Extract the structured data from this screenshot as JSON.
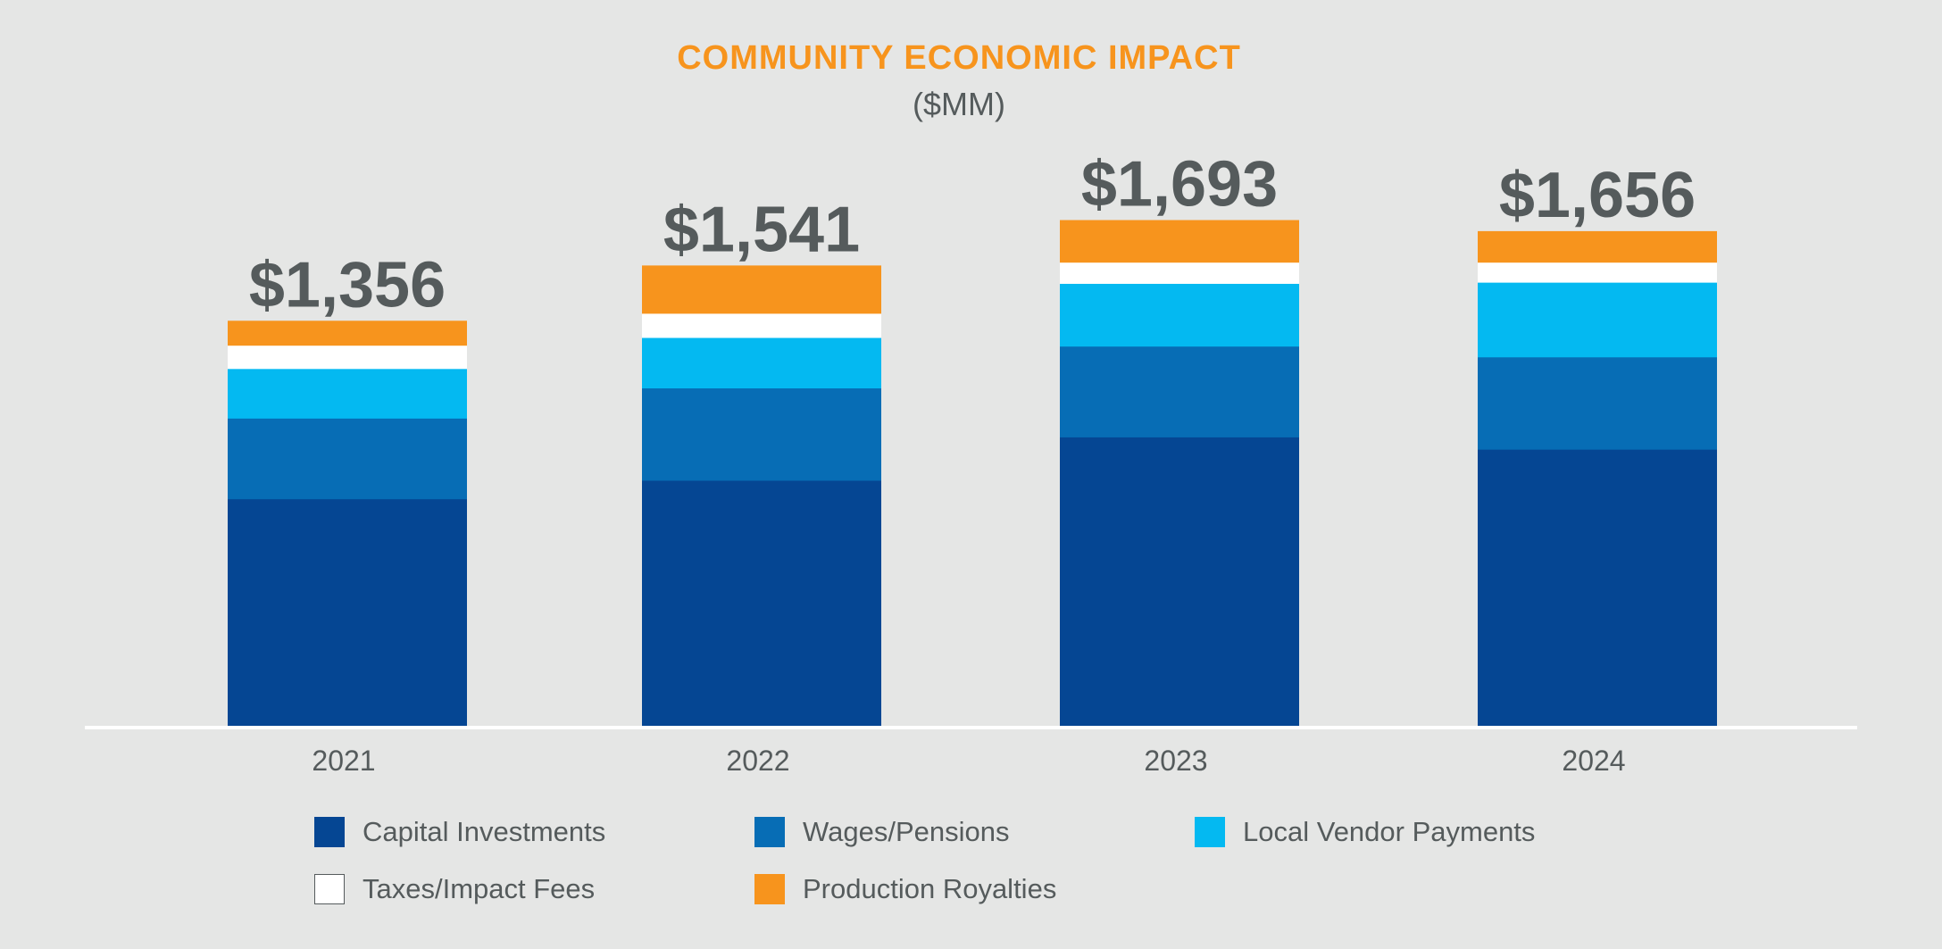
{
  "chart_data": {
    "type": "bar",
    "stacked": true,
    "title": "COMMUNITY ECONOMIC IMPACT",
    "subtitle": "($MM)",
    "categories": [
      "2021",
      "2022",
      "2023",
      "2024"
    ],
    "totals": [
      "$1,356",
      "$1,541",
      "$1,693",
      "$1,656"
    ],
    "total_values": [
      1356,
      1541,
      1693,
      1656
    ],
    "series": [
      {
        "name": "Capital Investments",
        "color": "#054693",
        "values": [
          760,
          822,
          967,
          926
        ]
      },
      {
        "name": "Wages/Pensions",
        "color": "#076db5",
        "values": [
          270,
          309,
          304,
          309
        ]
      },
      {
        "name": "Local Vendor Payments",
        "color": "#04b9f1",
        "values": [
          166,
          169,
          210,
          250
        ]
      },
      {
        "name": "Taxes/Impact Fees",
        "color": "#ffffff",
        "values": [
          78,
          81,
          71,
          67
        ]
      },
      {
        "name": "Production Royalties",
        "color": "#f7941d",
        "values": [
          82,
          160,
          141,
          104
        ]
      }
    ],
    "xlabel": "",
    "ylabel": "",
    "grid": false,
    "legend_position": "bottom"
  }
}
